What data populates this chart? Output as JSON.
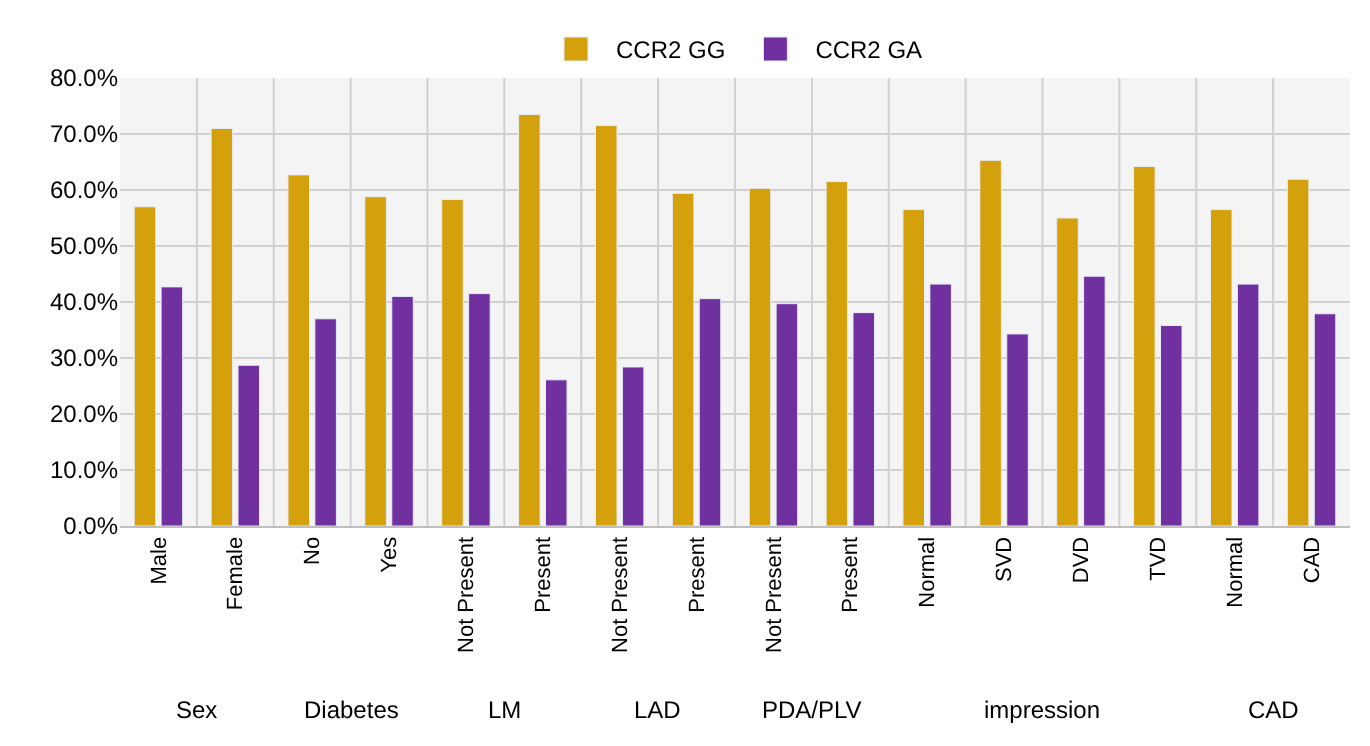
{
  "chart_data": {
    "type": "bar",
    "categories": [
      "Male",
      "Female",
      "No",
      "Yes",
      "Not Present",
      "Present",
      "Not Present",
      "Present",
      "Not Present",
      "Present",
      "Normal",
      "SVD",
      "DVD",
      "TVD",
      "Normal",
      "CAD"
    ],
    "series": [
      {
        "name": "CCR2 GG",
        "color": "#d4a00c",
        "values": [
          57.0,
          71.0,
          62.7,
          58.8,
          58.3,
          73.5,
          71.5,
          59.4,
          60.3,
          61.5,
          56.5,
          65.3,
          55.0,
          64.2,
          56.5,
          61.9
        ]
      },
      {
        "name": "CCR2 GA",
        "color": "#7030a0",
        "values": [
          42.7,
          28.7,
          37.0,
          41.0,
          41.5,
          26.1,
          28.4,
          40.6,
          39.7,
          38.1,
          43.2,
          34.3,
          44.6,
          35.8,
          43.2,
          37.9
        ]
      }
    ],
    "ylim": [
      0,
      80
    ],
    "yticks": [
      {
        "value": 0,
        "label": "0.0%"
      },
      {
        "value": 10,
        "label": "10.0%"
      },
      {
        "value": 20,
        "label": "20.0%"
      },
      {
        "value": 30,
        "label": "30.0%"
      },
      {
        "value": 40,
        "label": "40.0%"
      },
      {
        "value": 50,
        "label": "50.0%"
      },
      {
        "value": 60,
        "label": "60.0%"
      },
      {
        "value": 70,
        "label": "70.0%"
      },
      {
        "value": 80,
        "label": "80.0%"
      }
    ],
    "annotations": [
      "Sex",
      "Diabetes",
      "LM",
      "LAD",
      "PDA/PLV",
      "impression",
      "CAD"
    ],
    "grid": true,
    "legend": "top"
  }
}
